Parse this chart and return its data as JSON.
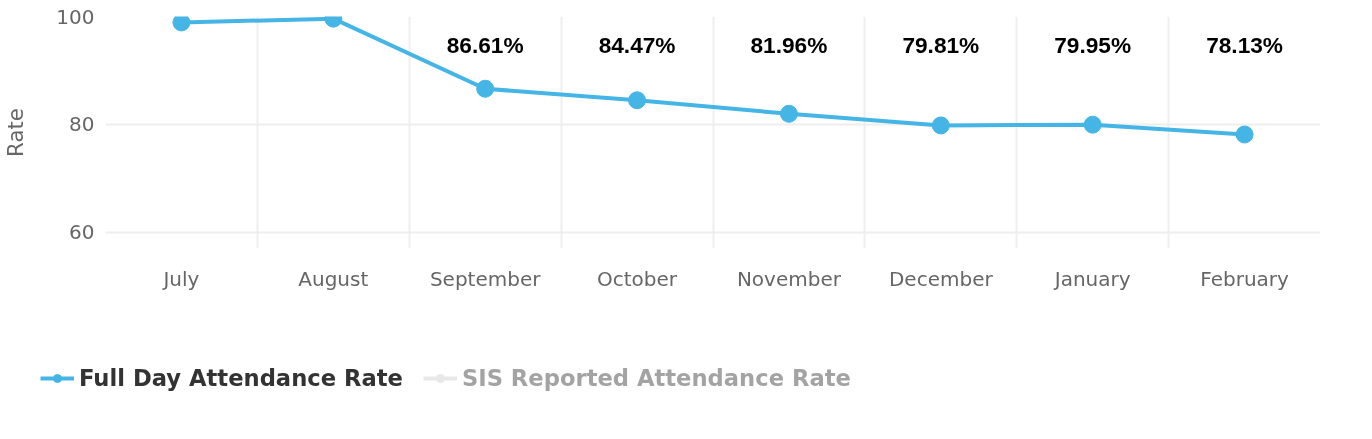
{
  "chart_data": {
    "type": "line",
    "ylabel": "Rate",
    "categories": [
      "July",
      "August",
      "September",
      "October",
      "November",
      "December",
      "January",
      "February"
    ],
    "ylim": [
      57,
      100
    ],
    "yticks": [
      60,
      80,
      100
    ],
    "grid": true,
    "legend": "bottom left",
    "marker": "circle",
    "line_style": "solid",
    "series": [
      {
        "name": "Full Day Attendance Rate",
        "color": "#45b5e6",
        "values": [
          98.9,
          99.6,
          86.61,
          84.47,
          81.96,
          79.81,
          79.95,
          78.13
        ],
        "value_labels": [
          null,
          null,
          "86.61%",
          "84.47%",
          "81.96%",
          "79.81%",
          "79.95%",
          "78.13%"
        ]
      },
      {
        "name": "SIS Reported Attendance Rate",
        "color": "#cccccc",
        "values": [
          null,
          null,
          null,
          null,
          null,
          null,
          null,
          null
        ]
      }
    ]
  }
}
